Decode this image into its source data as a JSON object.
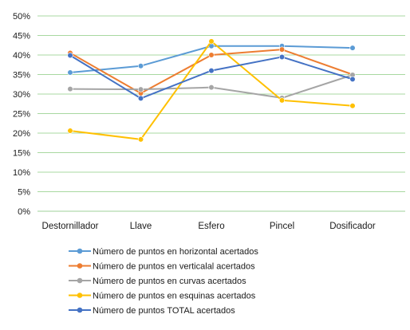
{
  "chart_data": {
    "type": "line",
    "title": "",
    "xlabel": "",
    "ylabel": "",
    "categories": [
      "Destornillador",
      "Llave",
      "Esfero",
      "Pincel",
      "Dosificador"
    ],
    "ylim": [
      0,
      50
    ],
    "y_tick_labels": [
      "0%",
      "5%",
      "10%",
      "15%",
      "20%",
      "25%",
      "30%",
      "35%",
      "40%",
      "45%",
      "50%"
    ],
    "grid": true,
    "legend_position": "bottom",
    "series": [
      {
        "name": "Número de puntos en horizontal acertados",
        "color": "#5b9bd5",
        "values": [
          35.5,
          37.2,
          42.3,
          42.3,
          41.8
        ]
      },
      {
        "name": "Número de puntos en verticalal acertados",
        "color": "#ed7d31",
        "values": [
          40.5,
          30.2,
          40.0,
          41.4,
          35.0
        ]
      },
      {
        "name": "Número de puntos en curvas acertados",
        "color": "#a5a5a5",
        "values": [
          31.3,
          31.2,
          31.7,
          29.0,
          34.9
        ]
      },
      {
        "name": "Número de puntos en esquinas acertados",
        "color": "#ffc000",
        "values": [
          20.6,
          18.4,
          43.5,
          28.4,
          27.0
        ]
      },
      {
        "name": "Número de puntos TOTAL acertados",
        "color": "#4472c4",
        "values": [
          39.9,
          28.9,
          36.0,
          39.5,
          33.8
        ]
      }
    ]
  }
}
